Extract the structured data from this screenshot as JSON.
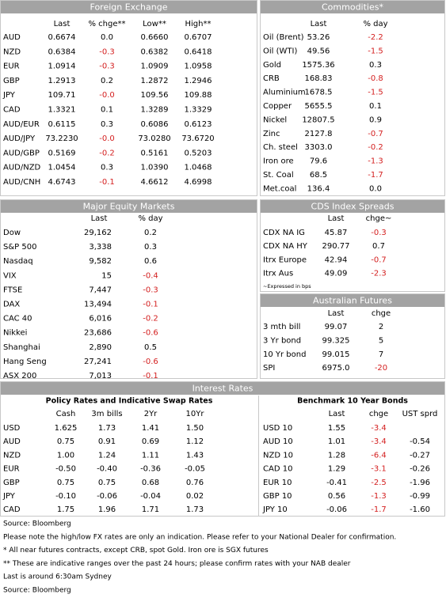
{
  "fx": {
    "title": "Foreign Exchange",
    "columns": [
      "Last",
      "% chge**",
      "Low**",
      "High**"
    ],
    "rows": [
      [
        "AUD",
        "0.6674",
        "0.0",
        "0.6660",
        "0.6707"
      ],
      [
        "NZD",
        "0.6384",
        "-0.3",
        "0.6382",
        "0.6418"
      ],
      [
        "EUR",
        "1.0914",
        "-0.3",
        "1.0909",
        "1.0958"
      ],
      [
        "GBP",
        "1.2913",
        "0.2",
        "1.2872",
        "1.2946"
      ],
      [
        "JPY",
        "109.71",
        "-0.0",
        "109.56",
        "109.88"
      ],
      [
        "CAD",
        "1.3321",
        "0.1",
        "1.3289",
        "1.3329"
      ],
      [
        "AUD/EUR",
        "0.6115",
        "0.3",
        "0.6086",
        "0.6123"
      ],
      [
        "AUD/JPY",
        "73.2230",
        "-0.0",
        "73.0280",
        "73.6720"
      ],
      [
        "AUD/GBP",
        "0.5169",
        "-0.2",
        "0.5161",
        "0.5203"
      ],
      [
        "AUD/NZD",
        "1.0454",
        "0.3",
        "1.0390",
        "1.0468"
      ],
      [
        "AUD/CNH",
        "4.6743",
        "-0.1",
        "4.6612",
        "4.6998"
      ]
    ]
  },
  "commodities": {
    "title": "Commodities*",
    "columns": [
      "Last",
      "% day"
    ],
    "rows": [
      [
        "Oil (Brent)",
        "53.26",
        "-2.2"
      ],
      [
        "Oil (WTI)",
        "49.56",
        "-1.5"
      ],
      [
        "Gold",
        "1575.36",
        "0.3"
      ],
      [
        "CRB",
        "168.83",
        "-0.8"
      ],
      [
        "Aluminium",
        "1678.5",
        "-1.5"
      ],
      [
        "Copper",
        "5655.5",
        "0.1"
      ],
      [
        "Nickel",
        "12807.5",
        "0.9"
      ],
      [
        "Zinc",
        "2127.8",
        "-0.7"
      ],
      [
        "Ch. steel",
        "3303.0",
        "-0.2"
      ],
      [
        "Iron ore",
        "79.6",
        "-1.3"
      ],
      [
        "St. Coal",
        "68.5",
        "-1.7"
      ],
      [
        "Met.coal",
        "136.4",
        "0.0"
      ]
    ]
  },
  "equities": {
    "title": "Major Equity Markets",
    "columns": [
      "Last",
      "% day"
    ],
    "rows": [
      [
        "Dow",
        "29,162",
        "0.2"
      ],
      [
        "S&P 500",
        "3,338",
        "0.3"
      ],
      [
        "Nasdaq",
        "9,582",
        "0.6"
      ],
      [
        "VIX",
        "15",
        "-0.4"
      ],
      [
        "FTSE",
        "7,447",
        "-0.3"
      ],
      [
        "DAX",
        "13,494",
        "-0.1"
      ],
      [
        "CAC 40",
        "6,016",
        "-0.2"
      ],
      [
        "Nikkei",
        "23,686",
        "-0.6"
      ],
      [
        "Shanghai",
        "2,890",
        "0.5"
      ],
      [
        "Hang Seng",
        "27,241",
        "-0.6"
      ],
      [
        "ASX 200",
        "7,013",
        "-0.1"
      ]
    ]
  },
  "cds": {
    "title": "CDS Index Spreads",
    "columns": [
      "Last",
      "chge~"
    ],
    "rows": [
      [
        "CDX NA IG",
        "45.87",
        "-0.3"
      ],
      [
        "CDX NA HY",
        "290.77",
        "0.7"
      ],
      [
        "Itrx Europe",
        "42.94",
        "-0.7"
      ],
      [
        "Itrx Aus",
        "49.09",
        "-2.3"
      ]
    ],
    "note": "~Expressed in bps"
  },
  "futures": {
    "title": "Australian Futures",
    "columns": [
      "Last",
      "chge"
    ],
    "rows": [
      [
        "3 mth bill",
        "99.07",
        "2"
      ],
      [
        "3 Yr bond",
        "99.325",
        "5"
      ],
      [
        "10 Yr bond",
        "99.015",
        "7"
      ],
      [
        "SPI",
        "6975.0",
        "-20"
      ]
    ]
  },
  "interest_rates": {
    "title": "Interest Rates",
    "policy": {
      "title": "Policy Rates and Indicative Swap Rates",
      "columns": [
        "Cash",
        "3m bills",
        "2Yr",
        "10Yr"
      ],
      "rows": [
        [
          "USD",
          "1.625",
          "1.73",
          "1.41",
          "1.50"
        ],
        [
          "AUD",
          "0.75",
          "0.91",
          "0.69",
          "1.12"
        ],
        [
          "NZD",
          "1.00",
          "1.24",
          "1.11",
          "1.43"
        ],
        [
          "EUR",
          "-0.50",
          "-0.40",
          "-0.36",
          "-0.05"
        ],
        [
          "GBP",
          "0.75",
          "0.75",
          "0.68",
          "0.76"
        ],
        [
          "JPY",
          "-0.10",
          "-0.06",
          "-0.04",
          "0.02"
        ],
        [
          "CAD",
          "1.75",
          "1.96",
          "1.71",
          "1.73"
        ]
      ]
    },
    "bonds": {
      "title": "Benchmark 10 Year Bonds",
      "columns": [
        "Last",
        "chge",
        "UST sprd"
      ],
      "rows": [
        [
          "USD 10",
          "1.55",
          "-3.4",
          null
        ],
        [
          "AUD 10",
          "1.01",
          "-3.4",
          "-0.54"
        ],
        [
          "NZD 10",
          "1.28",
          "-6.4",
          "-0.27"
        ],
        [
          "CAD 10",
          "1.29",
          "-3.1",
          "-0.26"
        ],
        [
          "EUR 10",
          "-0.41",
          "-2.5",
          "-1.96"
        ],
        [
          "GBP 10",
          "0.56",
          "-1.3",
          "-0.99"
        ],
        [
          "JPY 10",
          "-0.06",
          "-1.7",
          "-1.60"
        ]
      ]
    }
  },
  "footnotes": [
    "Source: Bloomberg",
    "Please note the high/low FX rates are only an indication. Please refer to your National Dealer for confirmation.",
    "* All near futures contracts, except CRB, spot Gold.  Iron ore is SGX futures",
    "** These are indicative ranges over the past 24 hours; please confirm rates with your NAB dealer",
    "Last is around 6:30am Sydney",
    "Source: Bloomberg"
  ]
}
